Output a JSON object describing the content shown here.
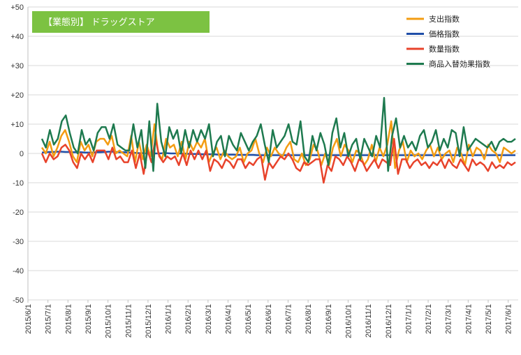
{
  "chart_data": {
    "type": "line",
    "title": "【業態別】 ドラッグストア",
    "xlabel": "",
    "ylabel": "",
    "ylim": [
      -50,
      50
    ],
    "y_ticks": [
      "+50",
      "+40",
      "+30",
      "+20",
      "+10",
      "0",
      "-10",
      "-20",
      "-30",
      "-40",
      "-50"
    ],
    "y_tick_values": [
      50,
      40,
      30,
      20,
      10,
      0,
      -10,
      -20,
      -30,
      -40,
      -50
    ],
    "x_tick_labels": [
      "2015/6/1",
      "2015/7/1",
      "2015/8/1",
      "2015/9/1",
      "2015/10/1",
      "2015/11/1",
      "2015/12/1",
      "2016/1/1",
      "2016/2/1",
      "2016/3/1",
      "2016/4/1",
      "2016/5/1",
      "2016/6/1",
      "2016/7/1",
      "2016/8/1",
      "2016/9/1",
      "2016/10/1",
      "2016/11/1",
      "2016/12/1",
      "2017/1/1",
      "2017/2/1",
      "2017/3/1",
      "2017/4/1",
      "2017/5/1",
      "2017/6/1"
    ],
    "grid": "horizontal",
    "legend_position": "top-right",
    "series": [
      {
        "name": "支出指数",
        "color": "#f39c12",
        "values": [
          2,
          0,
          4,
          -1,
          2,
          6,
          8,
          4,
          -1,
          -3,
          4,
          1,
          3,
          -1,
          4,
          5,
          5,
          3,
          6,
          0,
          1,
          0,
          -1,
          6,
          -3,
          4,
          -2,
          3,
          -1,
          10,
          0,
          -2,
          5,
          2,
          3,
          -1,
          4,
          -2,
          4,
          1,
          4,
          2,
          5,
          -3,
          0,
          2,
          -2,
          1,
          -1,
          -2,
          -1,
          2,
          -3,
          0,
          1,
          5,
          0,
          -3,
          2,
          -1,
          2,
          0,
          -1,
          2,
          4,
          -2,
          -3,
          0,
          -4,
          -2,
          3,
          1,
          -4,
          0,
          -4,
          2,
          5,
          -1,
          3,
          1,
          -3,
          1,
          0,
          -4,
          -2,
          3,
          -3,
          2,
          -1,
          3,
          11,
          -5,
          1,
          4,
          -3,
          1,
          -1,
          0,
          -2,
          1,
          3,
          -1,
          2,
          -2,
          0,
          1,
          -3,
          2,
          0,
          -4,
          3,
          -1,
          2,
          1,
          -2,
          3,
          1,
          0,
          -3,
          2,
          1,
          0,
          1
        ]
      },
      {
        "name": "価格指数",
        "color": "#1f4ea8",
        "values": [
          0.3,
          0.4,
          0.5,
          0.5,
          0.6,
          0.6,
          0.5,
          0.5,
          0.4,
          0.4,
          0.4,
          0.3,
          0.3,
          0.3,
          0.4,
          0.4,
          0.5,
          0.6,
          0.6,
          0.5,
          0.4,
          0.4,
          0.3,
          0.3,
          0.2,
          0.1,
          0.1,
          0.0,
          0.0,
          0.0,
          0.0,
          0.1,
          0.1,
          0.0,
          0.0,
          0.0,
          -0.1,
          -0.1,
          -0.2,
          -0.2,
          -0.2,
          -0.3,
          -0.3,
          -0.3,
          -0.3,
          -0.4,
          -0.4,
          -0.4,
          -0.4,
          -0.4,
          -0.5,
          -0.5,
          -0.5,
          -0.5,
          -0.5,
          -0.6,
          -0.6,
          -0.6,
          -0.6,
          -0.6,
          -0.6,
          -0.6,
          -0.6,
          -0.6,
          -0.6,
          -0.6,
          -0.6,
          -0.6,
          -0.6,
          -0.6,
          -0.6,
          -0.6,
          -0.6,
          -0.6,
          -0.6,
          -0.6,
          -0.6,
          -0.6,
          -0.6,
          -0.6,
          -0.6,
          -0.6,
          -0.6,
          -0.6,
          -0.6,
          -0.6,
          -0.6,
          -0.6,
          -0.6,
          -0.6,
          -0.6,
          -0.6,
          -0.6,
          -0.6,
          -0.6,
          -0.6,
          -0.6,
          -0.6,
          -0.6,
          -0.6,
          -0.6,
          -0.6,
          -0.6,
          -0.6,
          -0.6,
          -0.6,
          -0.6,
          -0.6,
          -0.6,
          -0.6,
          -0.6,
          -0.6,
          -0.6,
          -0.6,
          -0.6,
          -0.6,
          -0.6,
          -0.6,
          -0.6,
          -0.6,
          -0.6,
          -0.6
        ]
      },
      {
        "name": "数量指数",
        "color": "#e8432b",
        "values": [
          0,
          -3,
          0,
          -2,
          -1,
          2,
          3,
          1,
          -3,
          -5,
          0,
          -2,
          0,
          -3,
          1,
          1,
          1,
          -2,
          2,
          -2,
          -1,
          -3,
          -3,
          1,
          -5,
          0,
          -7,
          1,
          -3,
          5,
          -1,
          -3,
          -1,
          -2,
          -1,
          -4,
          0,
          -4,
          1,
          -2,
          1,
          -2,
          1,
          -6,
          -2,
          -3,
          -5,
          -2,
          -3,
          -5,
          -2,
          -2,
          -5,
          -3,
          -4,
          -2,
          -1,
          -9,
          -3,
          -5,
          -3,
          -1,
          -2,
          0,
          -2,
          -5,
          -6,
          -3,
          -4,
          -3,
          -2,
          -2,
          -10,
          -4,
          -6,
          -1,
          -2,
          -4,
          -1,
          -3,
          -6,
          -2,
          -3,
          -6,
          -4,
          -2,
          -5,
          -2,
          -3,
          -4,
          5,
          -7,
          -2,
          -2,
          -5,
          -3,
          -2,
          -4,
          -3,
          -5,
          -3,
          -4,
          -2,
          -5,
          -2,
          -4,
          -5,
          -2,
          -4,
          -6,
          -2,
          -4,
          -3,
          -4,
          -6,
          -3,
          -5,
          -4,
          -5,
          -3,
          -4,
          -3
        ]
      },
      {
        "name": "商品入替効果指数",
        "color": "#1e7a4f",
        "values": [
          5,
          2,
          8,
          3,
          5,
          11,
          13,
          7,
          2,
          0,
          8,
          3,
          5,
          1,
          7,
          9,
          9,
          5,
          10,
          3,
          2,
          1,
          1,
          10,
          2,
          8,
          -5,
          11,
          -6,
          17,
          4,
          -1,
          9,
          5,
          8,
          0,
          8,
          2,
          8,
          4,
          8,
          5,
          10,
          -1,
          4,
          6,
          -1,
          6,
          3,
          1,
          7,
          4,
          1,
          4,
          6,
          10,
          3,
          -3,
          8,
          2,
          4,
          6,
          10,
          4,
          3,
          11,
          -1,
          -3,
          6,
          1,
          7,
          3,
          -4,
          7,
          12,
          2,
          7,
          -1,
          3,
          5,
          -2,
          5,
          2,
          -1,
          6,
          2,
          19,
          -6,
          6,
          12,
          2,
          6,
          2,
          4,
          1,
          6,
          8,
          2,
          4,
          8,
          1,
          5,
          2,
          8,
          7,
          -1,
          9,
          1,
          3,
          5,
          4,
          3,
          2,
          4,
          1,
          4,
          5,
          4,
          4,
          5
        ]
      }
    ]
  }
}
